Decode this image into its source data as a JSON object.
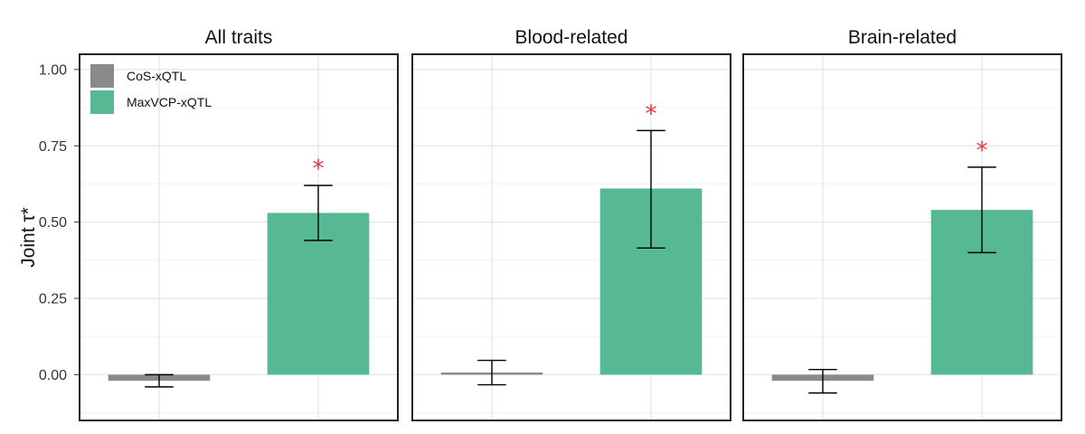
{
  "chart_data": {
    "type": "bar",
    "ylabel": "Joint τ*",
    "ylim": [
      -0.15,
      1.05
    ],
    "yticks": [
      "1.00",
      "0.75",
      "0.50",
      "0.25",
      "0.00"
    ],
    "ytick_values": [
      1.0,
      0.75,
      0.5,
      0.25,
      0.0
    ],
    "grid": true,
    "legend_position": "top-left inside first panel",
    "legend": [
      {
        "name": "CoS-xQTL",
        "color": "#8a8a8a"
      },
      {
        "name": "MaxVCP-xQTL",
        "color": "#57b994"
      }
    ],
    "significance_color": "#e8333f",
    "facets": [
      {
        "title": "All traits",
        "bars": [
          {
            "series": "CoS-xQTL",
            "value": -0.02,
            "err_low": -0.04,
            "err_high": 0.0,
            "significant": false
          },
          {
            "series": "MaxVCP-xQTL",
            "value": 0.53,
            "err_low": 0.44,
            "err_high": 0.62,
            "significant": true
          }
        ]
      },
      {
        "title": "Blood-related",
        "bars": [
          {
            "series": "CoS-xQTL",
            "value": 0.007,
            "err_low": -0.033,
            "err_high": 0.047,
            "significant": false
          },
          {
            "series": "MaxVCP-xQTL",
            "value": 0.61,
            "err_low": 0.415,
            "err_high": 0.8,
            "significant": true
          }
        ]
      },
      {
        "title": "Brain-related",
        "bars": [
          {
            "series": "CoS-xQTL",
            "value": -0.02,
            "err_low": -0.06,
            "err_high": 0.017,
            "significant": false
          },
          {
            "series": "MaxVCP-xQTL",
            "value": 0.54,
            "err_low": 0.4,
            "err_high": 0.68,
            "significant": true
          }
        ]
      }
    ]
  }
}
